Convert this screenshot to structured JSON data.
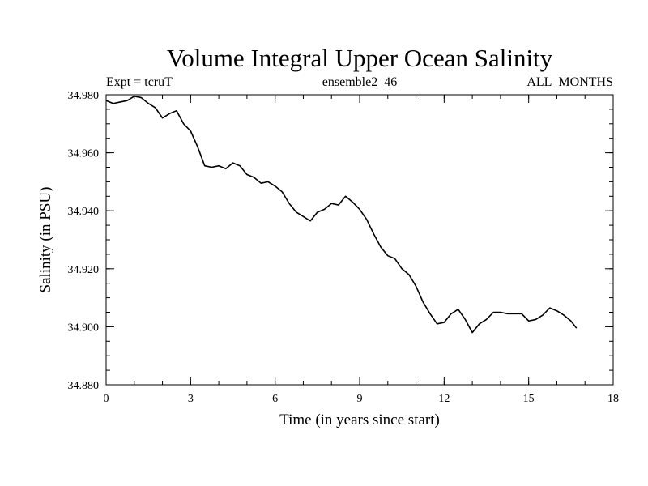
{
  "chart_data": {
    "type": "line",
    "title": "Volume Integral Upper Ocean Salinity",
    "subtitle_left": "Expt = tcruT",
    "subtitle_center": "ensemble2_46",
    "subtitle_right": "ALL_MONTHS",
    "xlabel": "Time (in years since start)",
    "ylabel": "Salinity (in PSU)",
    "xlim": [
      0,
      18
    ],
    "ylim": [
      34.88,
      34.98
    ],
    "x_ticks": [
      0,
      3,
      6,
      9,
      12,
      15,
      18
    ],
    "x_tick_labels": [
      "0",
      "3",
      "6",
      "9",
      "12",
      "15",
      "18"
    ],
    "y_ticks": [
      34.88,
      34.9,
      34.92,
      34.94,
      34.96,
      34.98
    ],
    "y_tick_labels": [
      "34.880",
      "34.900",
      "34.920",
      "34.940",
      "34.960",
      "34.980"
    ],
    "x_minor_step": 1,
    "y_minor_step": 0.005,
    "grid": false,
    "line_color": "#000000",
    "series": [
      {
        "name": "salinity",
        "x": [
          0,
          0.25,
          0.5,
          0.75,
          1.0,
          1.25,
          1.5,
          1.75,
          2.0,
          2.25,
          2.5,
          2.75,
          3.0,
          3.25,
          3.5,
          3.75,
          4.0,
          4.25,
          4.5,
          4.75,
          5.0,
          5.25,
          5.5,
          5.75,
          6.0,
          6.25,
          6.5,
          6.75,
          7.0,
          7.25,
          7.5,
          7.75,
          8.0,
          8.25,
          8.5,
          8.75,
          9.0,
          9.25,
          9.5,
          9.75,
          10.0,
          10.25,
          10.5,
          10.75,
          11.0,
          11.25,
          11.5,
          11.75,
          12.0,
          12.25,
          12.5,
          12.75,
          13.0,
          13.25,
          13.5,
          13.75,
          14.0,
          14.25,
          14.5,
          14.75,
          15.0,
          15.25,
          15.5,
          15.75,
          16.0,
          16.25,
          16.5,
          16.7
        ],
        "values": [
          34.978,
          34.977,
          34.9775,
          34.978,
          34.9795,
          34.979,
          34.977,
          34.9755,
          34.972,
          34.9735,
          34.9745,
          34.97,
          34.9675,
          34.962,
          34.9555,
          34.955,
          34.9555,
          34.9545,
          34.9565,
          34.9555,
          34.9525,
          34.9515,
          34.9495,
          34.95,
          34.9485,
          34.9465,
          34.9425,
          34.9395,
          34.938,
          34.9365,
          34.9395,
          34.9405,
          34.9425,
          34.942,
          34.945,
          34.943,
          34.9405,
          34.937,
          34.932,
          34.9275,
          34.9245,
          34.9235,
          34.92,
          34.918,
          34.914,
          34.9085,
          34.9045,
          34.901,
          34.9015,
          34.9045,
          34.906,
          34.9025,
          34.898,
          34.901,
          34.9025,
          34.905,
          34.905,
          34.9045,
          34.9045,
          34.9045,
          34.902,
          34.9025,
          34.904,
          34.9065,
          34.9055,
          34.904,
          34.902,
          34.8995
        ]
      }
    ]
  }
}
